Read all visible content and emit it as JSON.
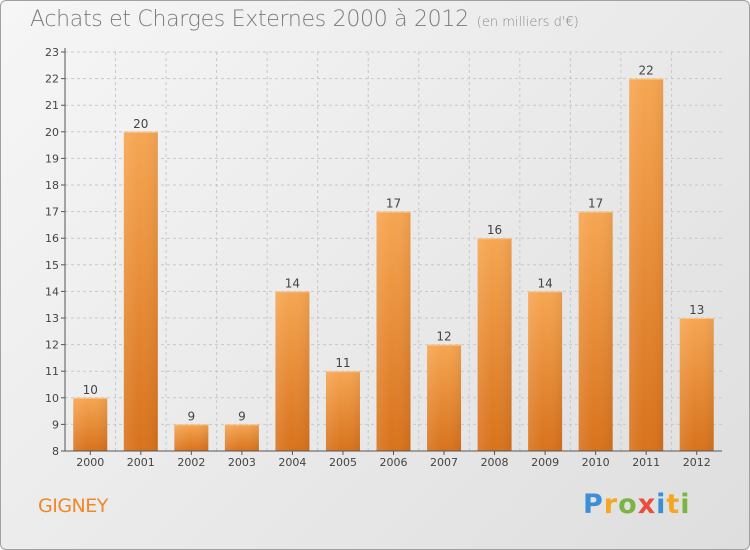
{
  "header": {
    "title": "Achats et Charges Externes 2000 à 2012",
    "unit": "(en milliers d'€)"
  },
  "commune": "GIGNEY",
  "logo": {
    "text": "Proxiti",
    "letters": [
      {
        "ch": "P",
        "color": "#3a8fd6"
      },
      {
        "ch": "r",
        "color": "#f5a623"
      },
      {
        "ch": "o",
        "color": "#7cb342"
      },
      {
        "ch": "x",
        "color": "#e94e3c"
      },
      {
        "ch": "i",
        "color": "#3a8fd6"
      },
      {
        "ch": "t",
        "color": "#f5a623"
      },
      {
        "ch": "i",
        "color": "#7cb342"
      }
    ]
  },
  "colors": {
    "bar_light": "#f6a652",
    "bar_dark": "#d8721c",
    "grid": "#c8c8c8",
    "axis": "#555555"
  },
  "chart_data": {
    "type": "bar",
    "title": "Achats et Charges Externes 2000 à 2012",
    "unit": "(en milliers d'€)",
    "categories": [
      "2000",
      "2001",
      "2002",
      "2003",
      "2004",
      "2005",
      "2006",
      "2007",
      "2008",
      "2009",
      "2010",
      "2011",
      "2012"
    ],
    "values": [
      10,
      20,
      9,
      9,
      14,
      11,
      17,
      12,
      16,
      14,
      17,
      22,
      13
    ],
    "ylim": [
      8,
      23
    ],
    "yticks": [
      8,
      9,
      10,
      11,
      12,
      13,
      14,
      15,
      16,
      17,
      18,
      19,
      20,
      21,
      22,
      23
    ],
    "grid": true,
    "data_labels": true
  }
}
